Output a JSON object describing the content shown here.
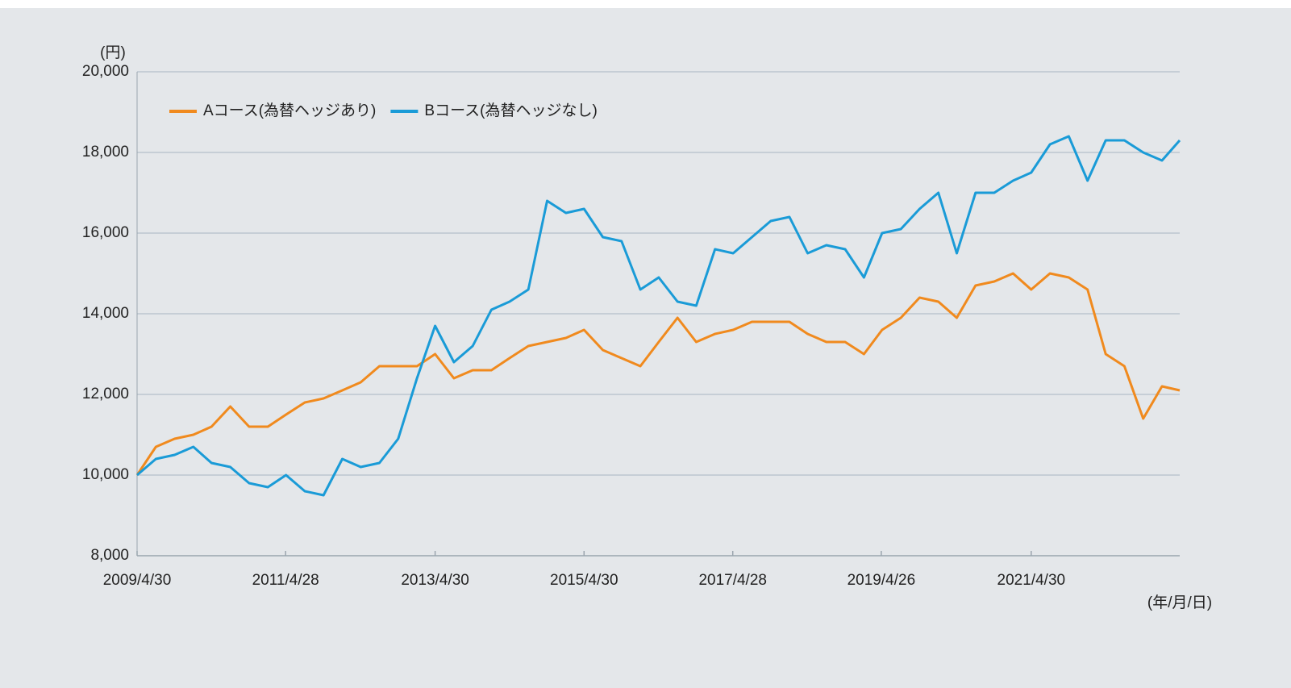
{
  "chart_data": {
    "type": "line",
    "y_unit_label": "(円)",
    "x_unit_label": "(年/月/日)",
    "legend": "upper left",
    "grid": true,
    "x": [
      "2009/4/30",
      "2009/7/31",
      "2009/10/31",
      "2010/1/31",
      "2010/4/30",
      "2010/7/31",
      "2010/10/31",
      "2011/1/31",
      "2011/4/30",
      "2011/7/31",
      "2011/10/31",
      "2012/1/31",
      "2012/4/30",
      "2012/7/31",
      "2012/10/31",
      "2013/1/31",
      "2013/4/30",
      "2013/7/31",
      "2013/10/31",
      "2014/1/31",
      "2014/4/30",
      "2014/7/31",
      "2014/10/31",
      "2015/1/31",
      "2015/4/30",
      "2015/7/31",
      "2015/10/31",
      "2016/1/31",
      "2016/4/30",
      "2016/7/31",
      "2016/10/31",
      "2017/1/31",
      "2017/4/30",
      "2017/7/31",
      "2017/10/31",
      "2018/1/31",
      "2018/4/30",
      "2018/7/31",
      "2018/10/31",
      "2019/1/31",
      "2019/4/30",
      "2019/7/31",
      "2019/10/31",
      "2020/1/31",
      "2020/4/30",
      "2020/7/31",
      "2020/10/31",
      "2021/1/31",
      "2021/4/30",
      "2021/7/31",
      "2021/10/31",
      "2022/1/31",
      "2022/4/30",
      "2022/7/31",
      "2022/10/31",
      "2023/1/31",
      "2023/4/28"
    ],
    "xlim": [
      "2009/4/30",
      "2023/4/28"
    ],
    "xticks": [
      "2009/4/30",
      "2011/4/28",
      "2013/4/30",
      "2015/4/30",
      "2017/4/28",
      "2019/4/26",
      "2021/4/30"
    ],
    "ylim": [
      8000,
      20000
    ],
    "yticks": [
      {
        "value": 8000,
        "label": "8,000"
      },
      {
        "value": 10000,
        "label": "10,000"
      },
      {
        "value": 12000,
        "label": "12,000"
      },
      {
        "value": 14000,
        "label": "14,000"
      },
      {
        "value": 16000,
        "label": "16,000"
      },
      {
        "value": 18000,
        "label": "18,000"
      },
      {
        "value": 20000,
        "label": "20,000"
      }
    ],
    "series": [
      {
        "name": "Aコース(為替ヘッジあり)",
        "color": "#f08a1e",
        "values": [
          10000,
          10700,
          10900,
          11000,
          11200,
          11700,
          11200,
          11200,
          11500,
          11800,
          11900,
          12100,
          12300,
          12700,
          12700,
          12700,
          13000,
          12400,
          12600,
          12600,
          12900,
          13200,
          13300,
          13400,
          13600,
          13100,
          12900,
          12700,
          13300,
          13900,
          13300,
          13500,
          13600,
          13800,
          13800,
          13800,
          13500,
          13300,
          13300,
          13000,
          13600,
          13900,
          14400,
          14300,
          13900,
          14700,
          14800,
          15000,
          14600,
          15000,
          14900,
          14600,
          13000,
          12700,
          11400,
          12200,
          12100
        ]
      },
      {
        "name": "Bコース(為替ヘッジなし)",
        "color": "#1a9bd7",
        "values": [
          10000,
          10400,
          10500,
          10700,
          10300,
          10200,
          9800,
          9700,
          10000,
          9600,
          9500,
          10400,
          10200,
          10300,
          10900,
          12400,
          13700,
          12800,
          13200,
          14100,
          14300,
          14600,
          16800,
          16500,
          16600,
          15900,
          15800,
          14600,
          14900,
          14300,
          14200,
          15600,
          15500,
          15900,
          16300,
          16400,
          15500,
          15700,
          15600,
          14900,
          16000,
          16100,
          16600,
          17000,
          15500,
          17000,
          17000,
          17300,
          17500,
          18200,
          18400,
          17300,
          18300,
          18300,
          18000,
          17800,
          18300
        ]
      }
    ]
  }
}
